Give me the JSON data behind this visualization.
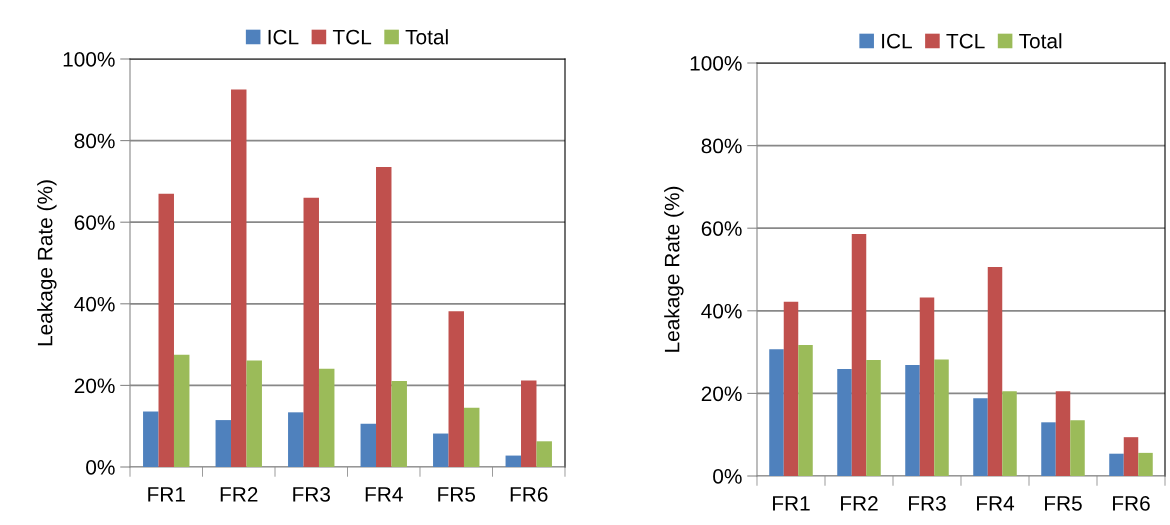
{
  "chart_data": [
    {
      "type": "bar",
      "ylabel": "Leakage Rate (%)",
      "categories": [
        "FR1",
        "FR2",
        "FR3",
        "FR4",
        "FR5",
        "FR6"
      ],
      "series": [
        {
          "name": "ICL",
          "color": "#4f81bd",
          "values": [
            13.6,
            11.5,
            13.4,
            10.6,
            8.2,
            2.8
          ]
        },
        {
          "name": "TCL",
          "color": "#c0504d",
          "values": [
            67.0,
            92.5,
            66.0,
            73.5,
            38.2,
            21.2
          ]
        },
        {
          "name": "Total",
          "color": "#9bbb59",
          "values": [
            27.5,
            26.1,
            24.1,
            21.1,
            14.5,
            6.3
          ]
        }
      ],
      "ylim": [
        0,
        100
      ],
      "yticks": [
        {
          "value": 0,
          "label": "0%"
        },
        {
          "value": 20,
          "label": "20%"
        },
        {
          "value": 40,
          "label": "40%"
        },
        {
          "value": 60,
          "label": "60%"
        },
        {
          "value": 80,
          "label": "80%"
        },
        {
          "value": 100,
          "label": "100%"
        }
      ],
      "grid": "y",
      "legend": "top"
    },
    {
      "type": "bar",
      "ylabel": "Leakage Rate (%)",
      "categories": [
        "FR1",
        "FR2",
        "FR3",
        "FR4",
        "FR5",
        "FR6"
      ],
      "series": [
        {
          "name": "ICL",
          "color": "#4f81bd",
          "values": [
            30.7,
            25.9,
            26.9,
            18.8,
            13.0,
            5.4
          ]
        },
        {
          "name": "TCL",
          "color": "#c0504d",
          "values": [
            42.2,
            58.6,
            43.2,
            50.6,
            20.5,
            9.4
          ]
        },
        {
          "name": "Total",
          "color": "#9bbb59",
          "values": [
            31.7,
            28.1,
            28.2,
            20.5,
            13.5,
            5.6
          ]
        }
      ],
      "ylim": [
        0,
        100
      ],
      "yticks": [
        {
          "value": 0,
          "label": "0%"
        },
        {
          "value": 20,
          "label": "20%"
        },
        {
          "value": 40,
          "label": "40%"
        },
        {
          "value": 60,
          "label": "60%"
        },
        {
          "value": 80,
          "label": "80%"
        },
        {
          "value": 100,
          "label": "100%"
        }
      ],
      "grid": "y",
      "legend": "top"
    }
  ]
}
